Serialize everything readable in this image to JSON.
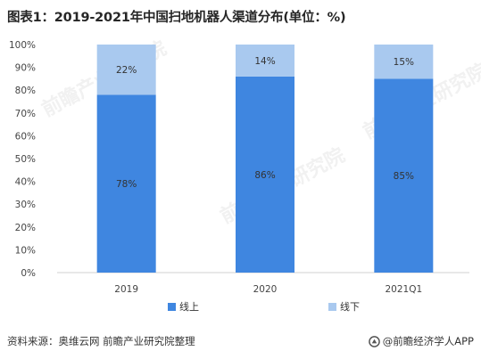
{
  "title": "图表1：2019-2021年中国扫地机器人渠道分布(单位：%)",
  "source": "资料来源：奥维云网 前瞻产业研究院整理",
  "brand": "@前瞻经济学人APP",
  "watermark": "前瞻产业研究院",
  "chart_data": {
    "type": "bar",
    "stacked": true,
    "categories": [
      "2019",
      "2020",
      "2021Q1"
    ],
    "series": [
      {
        "name": "线上",
        "values": [
          78,
          86,
          85
        ],
        "color": "#3f86e0"
      },
      {
        "name": "线下",
        "values": [
          22,
          14,
          15
        ],
        "color": "#a9c9ef"
      }
    ],
    "data_labels": [
      [
        "78%",
        "86%",
        "85%"
      ],
      [
        "22%",
        "14%",
        "15%"
      ]
    ],
    "yticks": [
      "0%",
      "10%",
      "20%",
      "30%",
      "40%",
      "50%",
      "60%",
      "70%",
      "80%",
      "90%",
      "100%"
    ],
    "ylim": [
      0,
      100
    ],
    "grid": false,
    "legend_position": "bottom"
  }
}
